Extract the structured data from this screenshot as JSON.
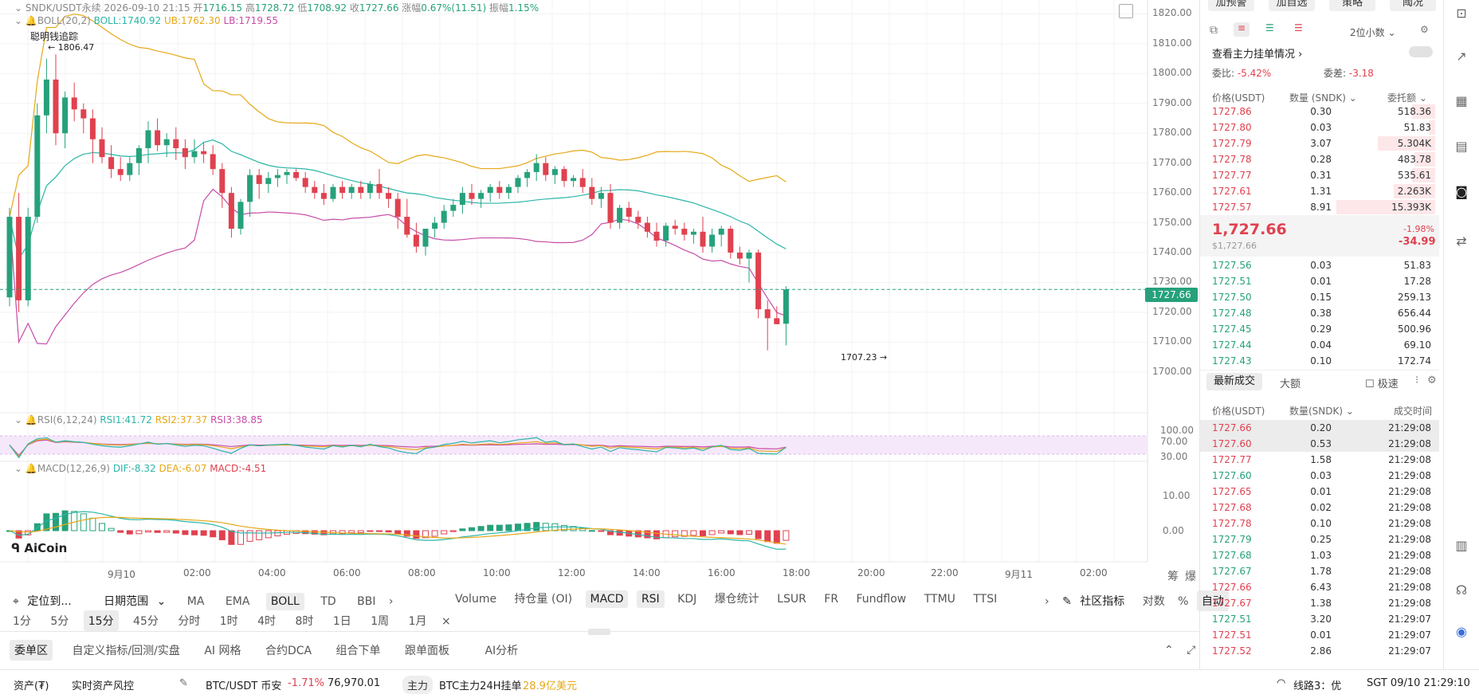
{
  "header": {
    "symbol": "SNDK/USDT永续",
    "time": "2026-09-10 21:15",
    "open_label": "开",
    "open": "1716.15",
    "high_label": "高",
    "high": "1728.72",
    "low_label": "低",
    "low": "1708.92",
    "close_label": "收",
    "close": "1727.66",
    "change_label": "涨幅",
    "change": "0.67%(11.51)",
    "amp_label": "振幅",
    "amp": "1.15%"
  },
  "boll": {
    "name": "BOLL(20,2)",
    "boll": "BOLL:1740.92",
    "ub": "UB:1762.30",
    "lb": "LB:1719.55"
  },
  "smart_money": "聪明钱追踪",
  "hi_marker": "← 1806.47",
  "lo_marker": "1707.23 →",
  "price_axis": [
    "1820.00",
    "1810.00",
    "1800.00",
    "1790.00",
    "1780.00",
    "1770.00",
    "1760.00",
    "1750.00",
    "1740.00",
    "1730.00",
    "1720.00",
    "1710.00",
    "1700.00"
  ],
  "current_price_tag": "1727.66",
  "rsi": {
    "name": "RSI(6,12,24)",
    "r1": "RSI1:41.72",
    "r2": "RSI2:37.37",
    "r3": "RSI3:38.85",
    "axis": [
      "100.00",
      "70.00",
      "30.00"
    ]
  },
  "macd": {
    "name": "MACD(12,26,9)",
    "dif": "DIF:-8.32",
    "dea": "DEA:-6.07",
    "macd": "MACD:-4.51",
    "axis": [
      "10.00",
      "0.00"
    ]
  },
  "logo": "AiCoin",
  "time_axis": [
    "9月10",
    "02:00",
    "04:00",
    "06:00",
    "08:00",
    "10:00",
    "12:00",
    "14:00",
    "16:00",
    "18:00",
    "20:00",
    "22:00",
    "9月11",
    "02:00"
  ],
  "corner_labels": [
    "筹",
    "爆"
  ],
  "toolbar1": {
    "locate": "定位到...",
    "range": "日期范围",
    "indicators": [
      "MA",
      "EMA",
      "BOLL",
      "TD",
      "BBI"
    ],
    "sub_indicators": [
      "Volume",
      "持仓量 (OI)",
      "MACD",
      "RSI",
      "KDJ",
      "爆仓统计",
      "LSUR",
      "FR",
      "Fundflow",
      "TTMU",
      "TTSI"
    ],
    "community": "社区指标",
    "right": [
      "对数",
      "%",
      "自动"
    ]
  },
  "toolbar2": {
    "intervals": [
      "1分",
      "5分",
      "15分",
      "45分",
      "分时",
      "1时",
      "4时",
      "8时",
      "1日",
      "1周",
      "1月"
    ],
    "selected": "15分"
  },
  "bottom_tabs": [
    "委单区",
    "自定义指标/回测/实盘",
    "AI 网格",
    "合约DCA",
    "组合下单",
    "跟单面板",
    "AI分析"
  ],
  "status": {
    "assets": "资产(₮)",
    "risk": "实时资产风控",
    "pair": "BTC/USDT 币安",
    "pair_change": "-1.71%",
    "pair_price": "76,970.01",
    "main_tag": "主力",
    "main_text": "BTC主力24H挂单",
    "main_value": "28.9亿美元",
    "line": "线路3：优",
    "clock": "SGT 09/10 21:29:10"
  },
  "book": {
    "top_buttons": [
      "加预警",
      "加自选",
      "策略",
      "阈况"
    ],
    "decimals": "2位小数",
    "main_orders": "查看主力挂单情况",
    "ratio_label": "委比:",
    "ratio": "-5.42%",
    "diff_label": "委差:",
    "diff": "-3.18",
    "col_price": "价格(USDT)",
    "col_qty": "数量 (SNDK)",
    "col_total": "委托额",
    "asks": [
      {
        "p": "1727.86",
        "q": "0.30",
        "t": "518.36",
        "w": 0.22
      },
      {
        "p": "1727.80",
        "q": "0.03",
        "t": "51.83",
        "w": 0.06
      },
      {
        "p": "1727.79",
        "q": "3.07",
        "t": "5.304K",
        "w": 0.55
      },
      {
        "p": "1727.78",
        "q": "0.28",
        "t": "483.78",
        "w": 0.2
      },
      {
        "p": "1727.77",
        "q": "0.31",
        "t": "535.61",
        "w": 0.22
      },
      {
        "p": "1727.61",
        "q": "1.31",
        "t": "2.263K",
        "w": 0.4
      },
      {
        "p": "1727.57",
        "q": "8.91",
        "t": "15.393K",
        "w": 0.95
      }
    ],
    "last_price": "1,727.66",
    "last_usd": "$1,727.66",
    "last_pct": "-1.98%",
    "last_chg": "-34.99",
    "bids": [
      {
        "p": "1727.56",
        "q": "0.03",
        "t": "51.83"
      },
      {
        "p": "1727.51",
        "q": "0.01",
        "t": "17.28"
      },
      {
        "p": "1727.50",
        "q": "0.15",
        "t": "259.13"
      },
      {
        "p": "1727.48",
        "q": "0.38",
        "t": "656.44"
      },
      {
        "p": "1727.45",
        "q": "0.29",
        "t": "500.96"
      },
      {
        "p": "1727.44",
        "q": "0.04",
        "t": "69.10"
      },
      {
        "p": "1727.43",
        "q": "0.10",
        "t": "172.74"
      }
    ],
    "trades_tab": "最新成交",
    "big_tab": "大额",
    "fast": "极速",
    "trade_cols": {
      "price": "价格(USDT)",
      "qty": "数量(SNDK)",
      "time": "成交时间"
    },
    "trades": [
      {
        "p": "1727.66",
        "q": "0.20",
        "t": "21:29:08",
        "side": "sell"
      },
      {
        "p": "1727.60",
        "q": "0.53",
        "t": "21:29:08",
        "side": "sell"
      },
      {
        "p": "1727.77",
        "q": "1.58",
        "t": "21:29:08",
        "side": "sell"
      },
      {
        "p": "1727.60",
        "q": "0.03",
        "t": "21:29:08",
        "side": "buy"
      },
      {
        "p": "1727.65",
        "q": "0.01",
        "t": "21:29:08",
        "side": "sell"
      },
      {
        "p": "1727.68",
        "q": "0.02",
        "t": "21:29:08",
        "side": "sell"
      },
      {
        "p": "1727.78",
        "q": "0.10",
        "t": "21:29:08",
        "side": "sell"
      },
      {
        "p": "1727.79",
        "q": "0.25",
        "t": "21:29:08",
        "side": "buy"
      },
      {
        "p": "1727.68",
        "q": "1.03",
        "t": "21:29:08",
        "side": "buy"
      },
      {
        "p": "1727.67",
        "q": "1.78",
        "t": "21:29:08",
        "side": "buy"
      },
      {
        "p": "1727.66",
        "q": "6.43",
        "t": "21:29:08",
        "side": "sell"
      },
      {
        "p": "1727.67",
        "q": "1.38",
        "t": "21:29:08",
        "side": "sell"
      },
      {
        "p": "1727.51",
        "q": "3.20",
        "t": "21:29:07",
        "side": "buy"
      },
      {
        "p": "1727.51",
        "q": "0.01",
        "t": "21:29:07",
        "side": "sell"
      },
      {
        "p": "1727.52",
        "q": "2.86",
        "t": "21:29:07",
        "side": "sell"
      }
    ]
  },
  "colors": {
    "up": "#26a17b",
    "down": "#e0414f",
    "boll_mid": "#2bb5a8",
    "boll_ub": "#e6a817",
    "boll_lb": "#c74ca8"
  },
  "chart_data": {
    "type": "candlestick",
    "ylim": [
      1697,
      1822
    ],
    "interval": "15分",
    "candles": [
      [
        1725,
        1755,
        1722,
        1752
      ],
      [
        1752,
        1760,
        1720,
        1724
      ],
      [
        1724,
        1755,
        1722,
        1752
      ],
      [
        1752,
        1790,
        1750,
        1786
      ],
      [
        1786,
        1805,
        1780,
        1798
      ],
      [
        1798,
        1806.47,
        1776,
        1780
      ],
      [
        1780,
        1794,
        1775,
        1792
      ],
      [
        1792,
        1797,
        1784,
        1788
      ],
      [
        1788,
        1790,
        1780,
        1785
      ],
      [
        1785,
        1788,
        1770,
        1778
      ],
      [
        1778,
        1782,
        1770,
        1772
      ],
      [
        1772,
        1776,
        1765,
        1768
      ],
      [
        1768,
        1772,
        1764,
        1766
      ],
      [
        1766,
        1772,
        1764,
        1770
      ],
      [
        1770,
        1776,
        1766,
        1775
      ],
      [
        1775,
        1784,
        1770,
        1781
      ],
      [
        1781,
        1785,
        1774,
        1776
      ],
      [
        1776,
        1780,
        1772,
        1778
      ],
      [
        1778,
        1782,
        1771,
        1775
      ],
      [
        1775,
        1778,
        1768,
        1772
      ],
      [
        1772,
        1778,
        1770,
        1774
      ],
      [
        1774,
        1777,
        1770,
        1773
      ],
      [
        1773,
        1776,
        1766,
        1768
      ],
      [
        1768,
        1770,
        1755,
        1760
      ],
      [
        1760,
        1762,
        1745,
        1748
      ],
      [
        1748,
        1758,
        1746,
        1757
      ],
      [
        1757,
        1768,
        1752,
        1766
      ],
      [
        1766,
        1768,
        1758,
        1763
      ],
      [
        1763,
        1767,
        1760,
        1765
      ],
      [
        1765,
        1768,
        1762,
        1766
      ],
      [
        1766,
        1768,
        1763,
        1767
      ],
      [
        1767,
        1768,
        1764,
        1765
      ],
      [
        1765,
        1767,
        1760,
        1762
      ],
      [
        1762,
        1764,
        1758,
        1760
      ],
      [
        1760,
        1763,
        1756,
        1758
      ],
      [
        1758,
        1763,
        1757,
        1762
      ],
      [
        1762,
        1764,
        1758,
        1760
      ],
      [
        1760,
        1763,
        1758,
        1762
      ],
      [
        1762,
        1764,
        1758,
        1760
      ],
      [
        1760,
        1764,
        1758,
        1763
      ],
      [
        1763,
        1768,
        1758,
        1760
      ],
      [
        1760,
        1762,
        1755,
        1758
      ],
      [
        1758,
        1760,
        1748,
        1752
      ],
      [
        1752,
        1758,
        1745,
        1746
      ],
      [
        1746,
        1750,
        1740,
        1742
      ],
      [
        1742,
        1748,
        1739,
        1748
      ],
      [
        1748,
        1752,
        1745,
        1750
      ],
      [
        1750,
        1756,
        1748,
        1754
      ],
      [
        1754,
        1758,
        1752,
        1756
      ],
      [
        1756,
        1762,
        1753,
        1760
      ],
      [
        1760,
        1763,
        1756,
        1758
      ],
      [
        1758,
        1761,
        1755,
        1760
      ],
      [
        1760,
        1763,
        1757,
        1762
      ],
      [
        1762,
        1764,
        1758,
        1760
      ],
      [
        1760,
        1763,
        1758,
        1762
      ],
      [
        1762,
        1766,
        1760,
        1765
      ],
      [
        1765,
        1768,
        1762,
        1767
      ],
      [
        1767,
        1773,
        1764,
        1770
      ],
      [
        1770,
        1772,
        1764,
        1766
      ],
      [
        1766,
        1769,
        1763,
        1768
      ],
      [
        1768,
        1769,
        1762,
        1764
      ],
      [
        1764,
        1766,
        1762,
        1765
      ],
      [
        1765,
        1768,
        1760,
        1762
      ],
      [
        1762,
        1765,
        1756,
        1758
      ],
      [
        1758,
        1762,
        1755,
        1760
      ],
      [
        1760,
        1763,
        1748,
        1750
      ],
      [
        1750,
        1756,
        1748,
        1755
      ],
      [
        1755,
        1757,
        1750,
        1752
      ],
      [
        1752,
        1754,
        1748,
        1750
      ],
      [
        1750,
        1752,
        1745,
        1747
      ],
      [
        1747,
        1750,
        1742,
        1744
      ],
      [
        1744,
        1750,
        1742,
        1749
      ],
      [
        1749,
        1751,
        1746,
        1748
      ],
      [
        1748,
        1750,
        1744,
        1746
      ],
      [
        1746,
        1748,
        1743,
        1747
      ],
      [
        1747,
        1752,
        1740,
        1742
      ],
      [
        1742,
        1748,
        1740,
        1746
      ],
      [
        1746,
        1749,
        1742,
        1748
      ],
      [
        1748,
        1749,
        1738,
        1740
      ],
      [
        1740,
        1742,
        1736,
        1738
      ],
      [
        1738,
        1741,
        1730,
        1740
      ],
      [
        1740,
        1741,
        1718,
        1721
      ],
      [
        1721,
        1724,
        1707.23,
        1718
      ],
      [
        1718,
        1722,
        1716,
        1716
      ],
      [
        1716.15,
        1728.72,
        1708.92,
        1727.66
      ]
    ]
  }
}
